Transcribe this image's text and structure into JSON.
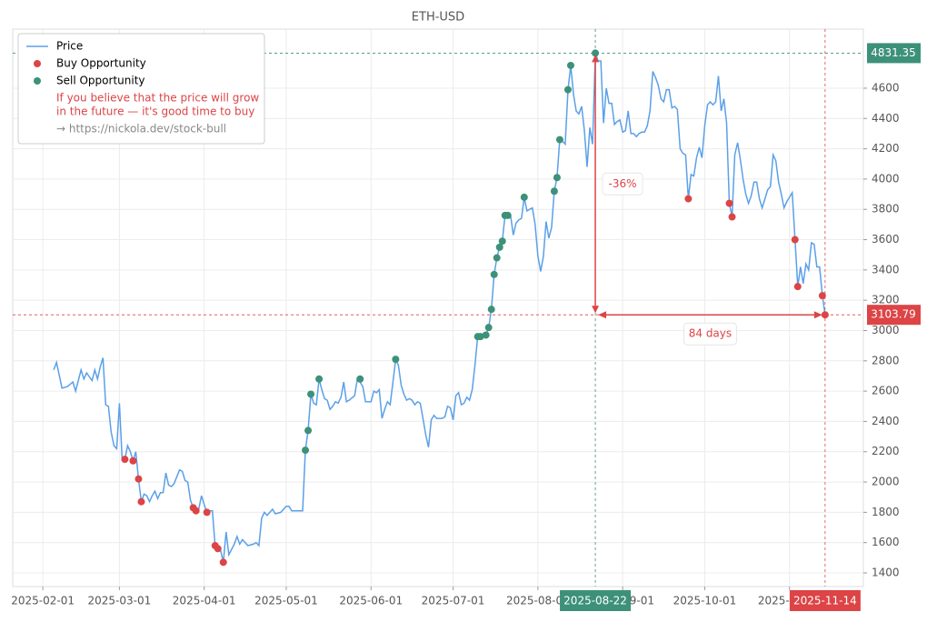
{
  "chart_data": {
    "type": "line",
    "title": "ETH-USD",
    "xlim": [
      "2025-01-21",
      "2025-11-28"
    ],
    "ylim": [
      1310,
      4990
    ],
    "xticks": [
      "2025-02-01",
      "2025-03-01",
      "2025-04-01",
      "2025-05-01",
      "2025-06-01",
      "2025-07-01",
      "2025-08-01",
      "2025-09-01",
      "2025-10-01",
      "2025-11-01"
    ],
    "yticks": [
      1400,
      1600,
      1800,
      2000,
      2200,
      2400,
      2600,
      2800,
      3000,
      3200,
      3400,
      3600,
      3800,
      4000,
      4200,
      4400,
      4600
    ],
    "grid": true,
    "legend": "upper left",
    "legend_note": [
      "If you believe that the price will grow",
      "in the future — it's good time to buy"
    ],
    "legend_link": "→ https://nickola.dev/stock-bull",
    "series": [
      {
        "name": "Price",
        "color": "#5ba0e8",
        "mode": "line",
        "x": [
          "2025-02-05",
          "2025-02-06",
          "2025-02-08",
          "2025-02-10",
          "2025-02-12",
          "2025-02-13",
          "2025-02-15",
          "2025-02-16",
          "2025-02-17",
          "2025-02-19",
          "2025-02-20",
          "2025-02-21",
          "2025-02-22",
          "2025-02-23",
          "2025-02-24",
          "2025-02-25",
          "2025-02-26",
          "2025-02-27",
          "2025-02-28",
          "2025-03-01",
          "2025-03-02",
          "2025-03-03",
          "2025-03-04",
          "2025-03-05",
          "2025-03-06",
          "2025-03-07",
          "2025-03-08",
          "2025-03-09",
          "2025-03-10",
          "2025-03-11",
          "2025-03-12",
          "2025-03-13",
          "2025-03-14",
          "2025-03-15",
          "2025-03-16",
          "2025-03-17",
          "2025-03-18",
          "2025-03-19",
          "2025-03-20",
          "2025-03-21",
          "2025-03-23",
          "2025-03-24",
          "2025-03-25",
          "2025-03-26",
          "2025-03-27",
          "2025-03-28",
          "2025-03-29",
          "2025-03-30",
          "2025-03-31",
          "2025-04-01",
          "2025-04-02",
          "2025-04-03",
          "2025-04-04",
          "2025-04-05",
          "2025-04-06",
          "2025-04-07",
          "2025-04-08",
          "2025-04-09",
          "2025-04-10",
          "2025-04-12",
          "2025-04-13",
          "2025-04-14",
          "2025-04-15",
          "2025-04-17",
          "2025-04-19",
          "2025-04-20",
          "2025-04-21",
          "2025-04-22",
          "2025-04-23",
          "2025-04-24",
          "2025-04-26",
          "2025-04-27",
          "2025-04-29",
          "2025-05-01",
          "2025-05-02",
          "2025-05-03",
          "2025-05-05",
          "2025-05-07",
          "2025-05-08",
          "2025-05-09",
          "2025-05-10",
          "2025-05-11",
          "2025-05-12",
          "2025-05-13",
          "2025-05-14",
          "2025-05-15",
          "2025-05-16",
          "2025-05-17",
          "2025-05-18",
          "2025-05-19",
          "2025-05-20",
          "2025-05-21",
          "2025-05-22",
          "2025-05-23",
          "2025-05-24",
          "2025-05-26",
          "2025-05-27",
          "2025-05-28",
          "2025-05-29",
          "2025-05-30",
          "2025-05-31",
          "2025-06-01",
          "2025-06-02",
          "2025-06-03",
          "2025-06-04",
          "2025-06-05",
          "2025-06-06",
          "2025-06-07",
          "2025-06-08",
          "2025-06-10",
          "2025-06-11",
          "2025-06-12",
          "2025-06-13",
          "2025-06-14",
          "2025-06-15",
          "2025-06-16",
          "2025-06-17",
          "2025-06-18",
          "2025-06-19",
          "2025-06-20",
          "2025-06-21",
          "2025-06-22",
          "2025-06-23",
          "2025-06-24",
          "2025-06-25",
          "2025-06-27",
          "2025-06-28",
          "2025-06-29",
          "2025-06-30",
          "2025-07-01",
          "2025-07-02",
          "2025-07-03",
          "2025-07-04",
          "2025-07-05",
          "2025-07-06",
          "2025-07-07",
          "2025-07-08",
          "2025-07-09",
          "2025-07-10",
          "2025-07-11",
          "2025-07-12",
          "2025-07-13",
          "2025-07-14",
          "2025-07-15",
          "2025-07-16",
          "2025-07-17",
          "2025-07-18",
          "2025-07-19",
          "2025-07-20",
          "2025-07-21",
          "2025-07-22",
          "2025-07-23",
          "2025-07-24",
          "2025-07-25",
          "2025-07-26",
          "2025-07-27",
          "2025-07-28",
          "2025-07-29",
          "2025-07-30",
          "2025-07-31",
          "2025-08-01",
          "2025-08-02",
          "2025-08-03",
          "2025-08-04",
          "2025-08-05",
          "2025-08-06",
          "2025-08-07",
          "2025-08-08",
          "2025-08-09",
          "2025-08-10",
          "2025-08-11",
          "2025-08-12",
          "2025-08-13",
          "2025-08-14",
          "2025-08-15",
          "2025-08-16",
          "2025-08-17",
          "2025-08-18",
          "2025-08-19",
          "2025-08-20",
          "2025-08-21",
          "2025-08-22",
          "2025-08-23",
          "2025-08-24",
          "2025-08-25",
          "2025-08-26",
          "2025-08-27",
          "2025-08-28",
          "2025-08-29",
          "2025-08-30",
          "2025-08-31",
          "2025-09-01",
          "2025-09-02",
          "2025-09-03",
          "2025-09-04",
          "2025-09-05",
          "2025-09-06",
          "2025-09-07",
          "2025-09-08",
          "2025-09-09",
          "2025-09-10",
          "2025-09-11",
          "2025-09-12",
          "2025-09-13",
          "2025-09-14",
          "2025-09-15",
          "2025-09-16",
          "2025-09-17",
          "2025-09-18",
          "2025-09-19",
          "2025-09-20",
          "2025-09-21",
          "2025-09-22",
          "2025-09-23",
          "2025-09-24",
          "2025-09-25",
          "2025-09-26",
          "2025-09-27",
          "2025-09-28",
          "2025-09-29",
          "2025-09-30",
          "2025-10-01",
          "2025-10-02",
          "2025-10-03",
          "2025-10-04",
          "2025-10-05",
          "2025-10-06",
          "2025-10-07",
          "2025-10-08",
          "2025-10-09",
          "2025-10-10",
          "2025-10-11",
          "2025-10-12",
          "2025-10-13",
          "2025-10-14",
          "2025-10-15",
          "2025-10-16",
          "2025-10-17",
          "2025-10-18",
          "2025-10-19",
          "2025-10-20",
          "2025-10-21",
          "2025-10-22",
          "2025-10-23",
          "2025-10-24",
          "2025-10-25",
          "2025-10-26",
          "2025-10-27",
          "2025-10-28",
          "2025-10-29",
          "2025-10-30",
          "2025-10-31",
          "2025-11-01",
          "2025-11-02",
          "2025-11-03",
          "2025-11-04",
          "2025-11-05",
          "2025-11-06",
          "2025-11-07",
          "2025-11-08",
          "2025-11-09",
          "2025-11-10",
          "2025-11-11",
          "2025-11-12",
          "2025-11-13",
          "2025-11-14"
        ],
        "values": [
          2740,
          2790,
          2620,
          2630,
          2660,
          2600,
          2740,
          2680,
          2720,
          2670,
          2740,
          2680,
          2760,
          2820,
          2510,
          2500,
          2330,
          2240,
          2220,
          2520,
          2150,
          2150,
          2240,
          2200,
          2140,
          2200,
          2020,
          1870,
          1920,
          1910,
          1870,
          1910,
          1940,
          1890,
          1930,
          1930,
          2060,
          1980,
          1970,
          1990,
          2080,
          2070,
          2010,
          2000,
          1880,
          1830,
          1810,
          1820,
          1910,
          1850,
          1800,
          1810,
          1810,
          1580,
          1560,
          1550,
          1470,
          1670,
          1520,
          1590,
          1640,
          1590,
          1620,
          1580,
          1590,
          1600,
          1580,
          1760,
          1800,
          1780,
          1820,
          1790,
          1800,
          1840,
          1840,
          1810,
          1810,
          1810,
          2210,
          2340,
          2580,
          2520,
          2510,
          2680,
          2610,
          2550,
          2540,
          2480,
          2500,
          2530,
          2520,
          2560,
          2660,
          2530,
          2540,
          2570,
          2680,
          2660,
          2630,
          2530,
          2530,
          2530,
          2600,
          2590,
          2610,
          2420,
          2480,
          2530,
          2510,
          2810,
          2770,
          2640,
          2580,
          2540,
          2550,
          2540,
          2510,
          2530,
          2520,
          2420,
          2310,
          2230,
          2410,
          2440,
          2420,
          2420,
          2430,
          2500,
          2490,
          2410,
          2570,
          2590,
          2510,
          2520,
          2560,
          2540,
          2610,
          2770,
          2960,
          2960,
          2970,
          2970,
          3020,
          3140,
          3370,
          3480,
          3550,
          3590,
          3760,
          3760,
          3760,
          3630,
          3710,
          3730,
          3740,
          3880,
          3790,
          3800,
          3810,
          3700,
          3490,
          3390,
          3490,
          3720,
          3610,
          3680,
          3920,
          4010,
          4260,
          4250,
          4230,
          4590,
          4750,
          4560,
          4450,
          4430,
          4480,
          4320,
          4080,
          4340,
          4230,
          4831.35,
          4780,
          4780,
          4370,
          4600,
          4500,
          4500,
          4360,
          4380,
          4390,
          4310,
          4320,
          4450,
          4300,
          4300,
          4280,
          4300,
          4310,
          4310,
          4350,
          4450,
          4710,
          4670,
          4620,
          4530,
          4510,
          4590,
          4590,
          4470,
          4480,
          4460,
          4200,
          4170,
          4160,
          3870,
          4030,
          4020,
          4140,
          4210,
          4140,
          4350,
          4490,
          4510,
          4490,
          4510,
          4680,
          4450,
          4530,
          4370,
          3840,
          3750,
          4160,
          4240,
          4130,
          4000,
          3900,
          3840,
          3890,
          3980,
          3980,
          3870,
          3810,
          3870,
          3930,
          3950,
          4160,
          4120,
          3980,
          3900,
          3810,
          3850,
          3880,
          3910,
          3600,
          3290,
          3420,
          3310,
          3440,
          3400,
          3580,
          3570,
          3420,
          3420,
          3230,
          3103.79
        ]
      },
      {
        "name": "Buy Opportunity",
        "color": "#dc4446",
        "mode": "scatter",
        "x": [
          "2025-03-03",
          "2025-03-06",
          "2025-03-08",
          "2025-03-09",
          "2025-03-28",
          "2025-03-29",
          "2025-04-02",
          "2025-04-05",
          "2025-04-06",
          "2025-04-08",
          "2025-09-25",
          "2025-10-10",
          "2025-10-11",
          "2025-11-03",
          "2025-11-04",
          "2025-11-13",
          "2025-11-14"
        ],
        "values": [
          2150,
          2140,
          2020,
          1870,
          1830,
          1810,
          1800,
          1580,
          1560,
          1470,
          3870,
          3840,
          3750,
          3600,
          3290,
          3230,
          3103.79
        ]
      },
      {
        "name": "Sell Opportunity",
        "color": "#3d9178",
        "mode": "scatter",
        "x": [
          "2025-05-08",
          "2025-05-09",
          "2025-05-10",
          "2025-05-13",
          "2025-05-28",
          "2025-06-10",
          "2025-07-10",
          "2025-07-11",
          "2025-07-13",
          "2025-07-14",
          "2025-07-15",
          "2025-07-16",
          "2025-07-17",
          "2025-07-18",
          "2025-07-19",
          "2025-07-20",
          "2025-07-21",
          "2025-07-27",
          "2025-08-07",
          "2025-08-08",
          "2025-08-09",
          "2025-08-12",
          "2025-08-13",
          "2025-08-22"
        ],
        "values": [
          2210,
          2340,
          2580,
          2680,
          2680,
          2810,
          2960,
          2960,
          2970,
          3020,
          3140,
          3370,
          3480,
          3550,
          3590,
          3760,
          3760,
          3880,
          3920,
          4010,
          4260,
          4590,
          4750,
          4831.35
        ]
      }
    ],
    "high": {
      "x": "2025-08-22",
      "value": 4831.35,
      "color": "#3d9178"
    },
    "low": {
      "x": "2025-11-14",
      "value": 3103.79,
      "color": "#dc4446"
    },
    "change_label": "-36%",
    "duration_label": "84 days"
  }
}
